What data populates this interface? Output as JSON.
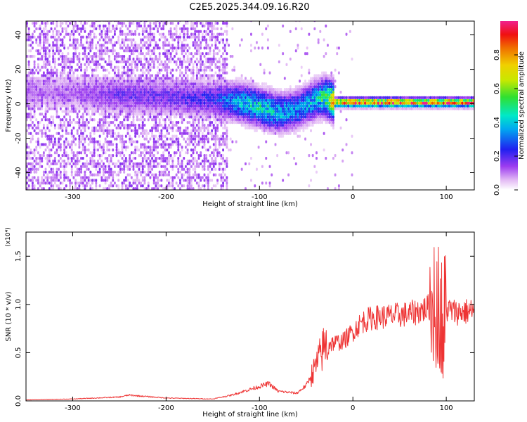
{
  "title": "C2E5.2025.344.09.16.R20",
  "chart_data": [
    {
      "type": "heatmap",
      "xlabel": "Height of straight line (km)",
      "ylabel": "Frequency (Hz)",
      "xlim": [
        -350,
        130
      ],
      "ylim": [
        -50,
        48
      ],
      "x_ticks": [
        -300,
        -200,
        -100,
        0,
        100
      ],
      "x_tick_labels": [
        "-300",
        "-200",
        "-100",
        "0",
        "100"
      ],
      "y_ticks": [
        -40,
        -20,
        0,
        20,
        40
      ],
      "y_tick_labels": [
        "-40",
        "-20",
        "0",
        "20",
        "40"
      ],
      "colorbar": {
        "label": "Normalized spectral amplitude",
        "range": [
          0,
          1
        ],
        "ticks": [
          0.0,
          0.2,
          0.4,
          0.6,
          0.8
        ],
        "tick_labels": [
          "0.0",
          "0.2",
          "0.4",
          "0.6",
          "0.8"
        ],
        "colormap": "rainbow (white-purple-blue-cyan-green-yellow-red-magenta)"
      },
      "ridge": {
        "description": "spectral energy concentrated near 0 Hz",
        "x": [
          -300,
          -250,
          -200,
          -150,
          -120,
          -100,
          -80,
          -60,
          -40,
          -30,
          -20,
          0,
          50,
          100,
          130
        ],
        "frequency": [
          6,
          4,
          3,
          2,
          0,
          -3,
          -6,
          -4,
          2,
          3,
          0,
          0,
          0,
          0,
          0
        ],
        "amplitude": [
          0.12,
          0.2,
          0.2,
          0.25,
          0.45,
          0.5,
          0.45,
          0.4,
          0.45,
          0.6,
          0.9,
          1.0,
          1.0,
          1.0,
          1.0
        ]
      }
    },
    {
      "type": "line",
      "xlabel": "Height of straight line (km)",
      "ylabel": "SNR (10 * v/v)",
      "y_multiplier": "(x10⁴)",
      "xlim": [
        -350,
        130
      ],
      "ylim": [
        0,
        1.75
      ],
      "x_ticks": [
        -300,
        -200,
        -100,
        0,
        100
      ],
      "x_tick_labels": [
        "-300",
        "-200",
        "-100",
        "0",
        "100"
      ],
      "y_ticks": [
        0.0,
        0.5,
        1.0,
        1.5
      ],
      "y_tick_labels": [
        "0.0",
        "0.5",
        "1.0",
        "1.5"
      ],
      "color": "#ee3333",
      "series": [
        {
          "x": [
            -350,
            -300,
            -250,
            -240,
            -200,
            -150,
            -130,
            -110,
            -90,
            -80,
            -60,
            -50,
            -40,
            -30,
            -20,
            -10,
            0,
            10,
            20,
            40,
            60,
            80,
            90,
            95,
            100,
            110,
            130
          ],
          "y": [
            0.01,
            0.02,
            0.04,
            0.06,
            0.03,
            0.02,
            0.06,
            0.12,
            0.18,
            0.1,
            0.08,
            0.16,
            0.35,
            0.58,
            0.6,
            0.62,
            0.72,
            0.82,
            0.86,
            0.88,
            0.9,
            0.96,
            1.05,
            0.9,
            0.95,
            0.92,
            0.93
          ]
        }
      ]
    }
  ]
}
